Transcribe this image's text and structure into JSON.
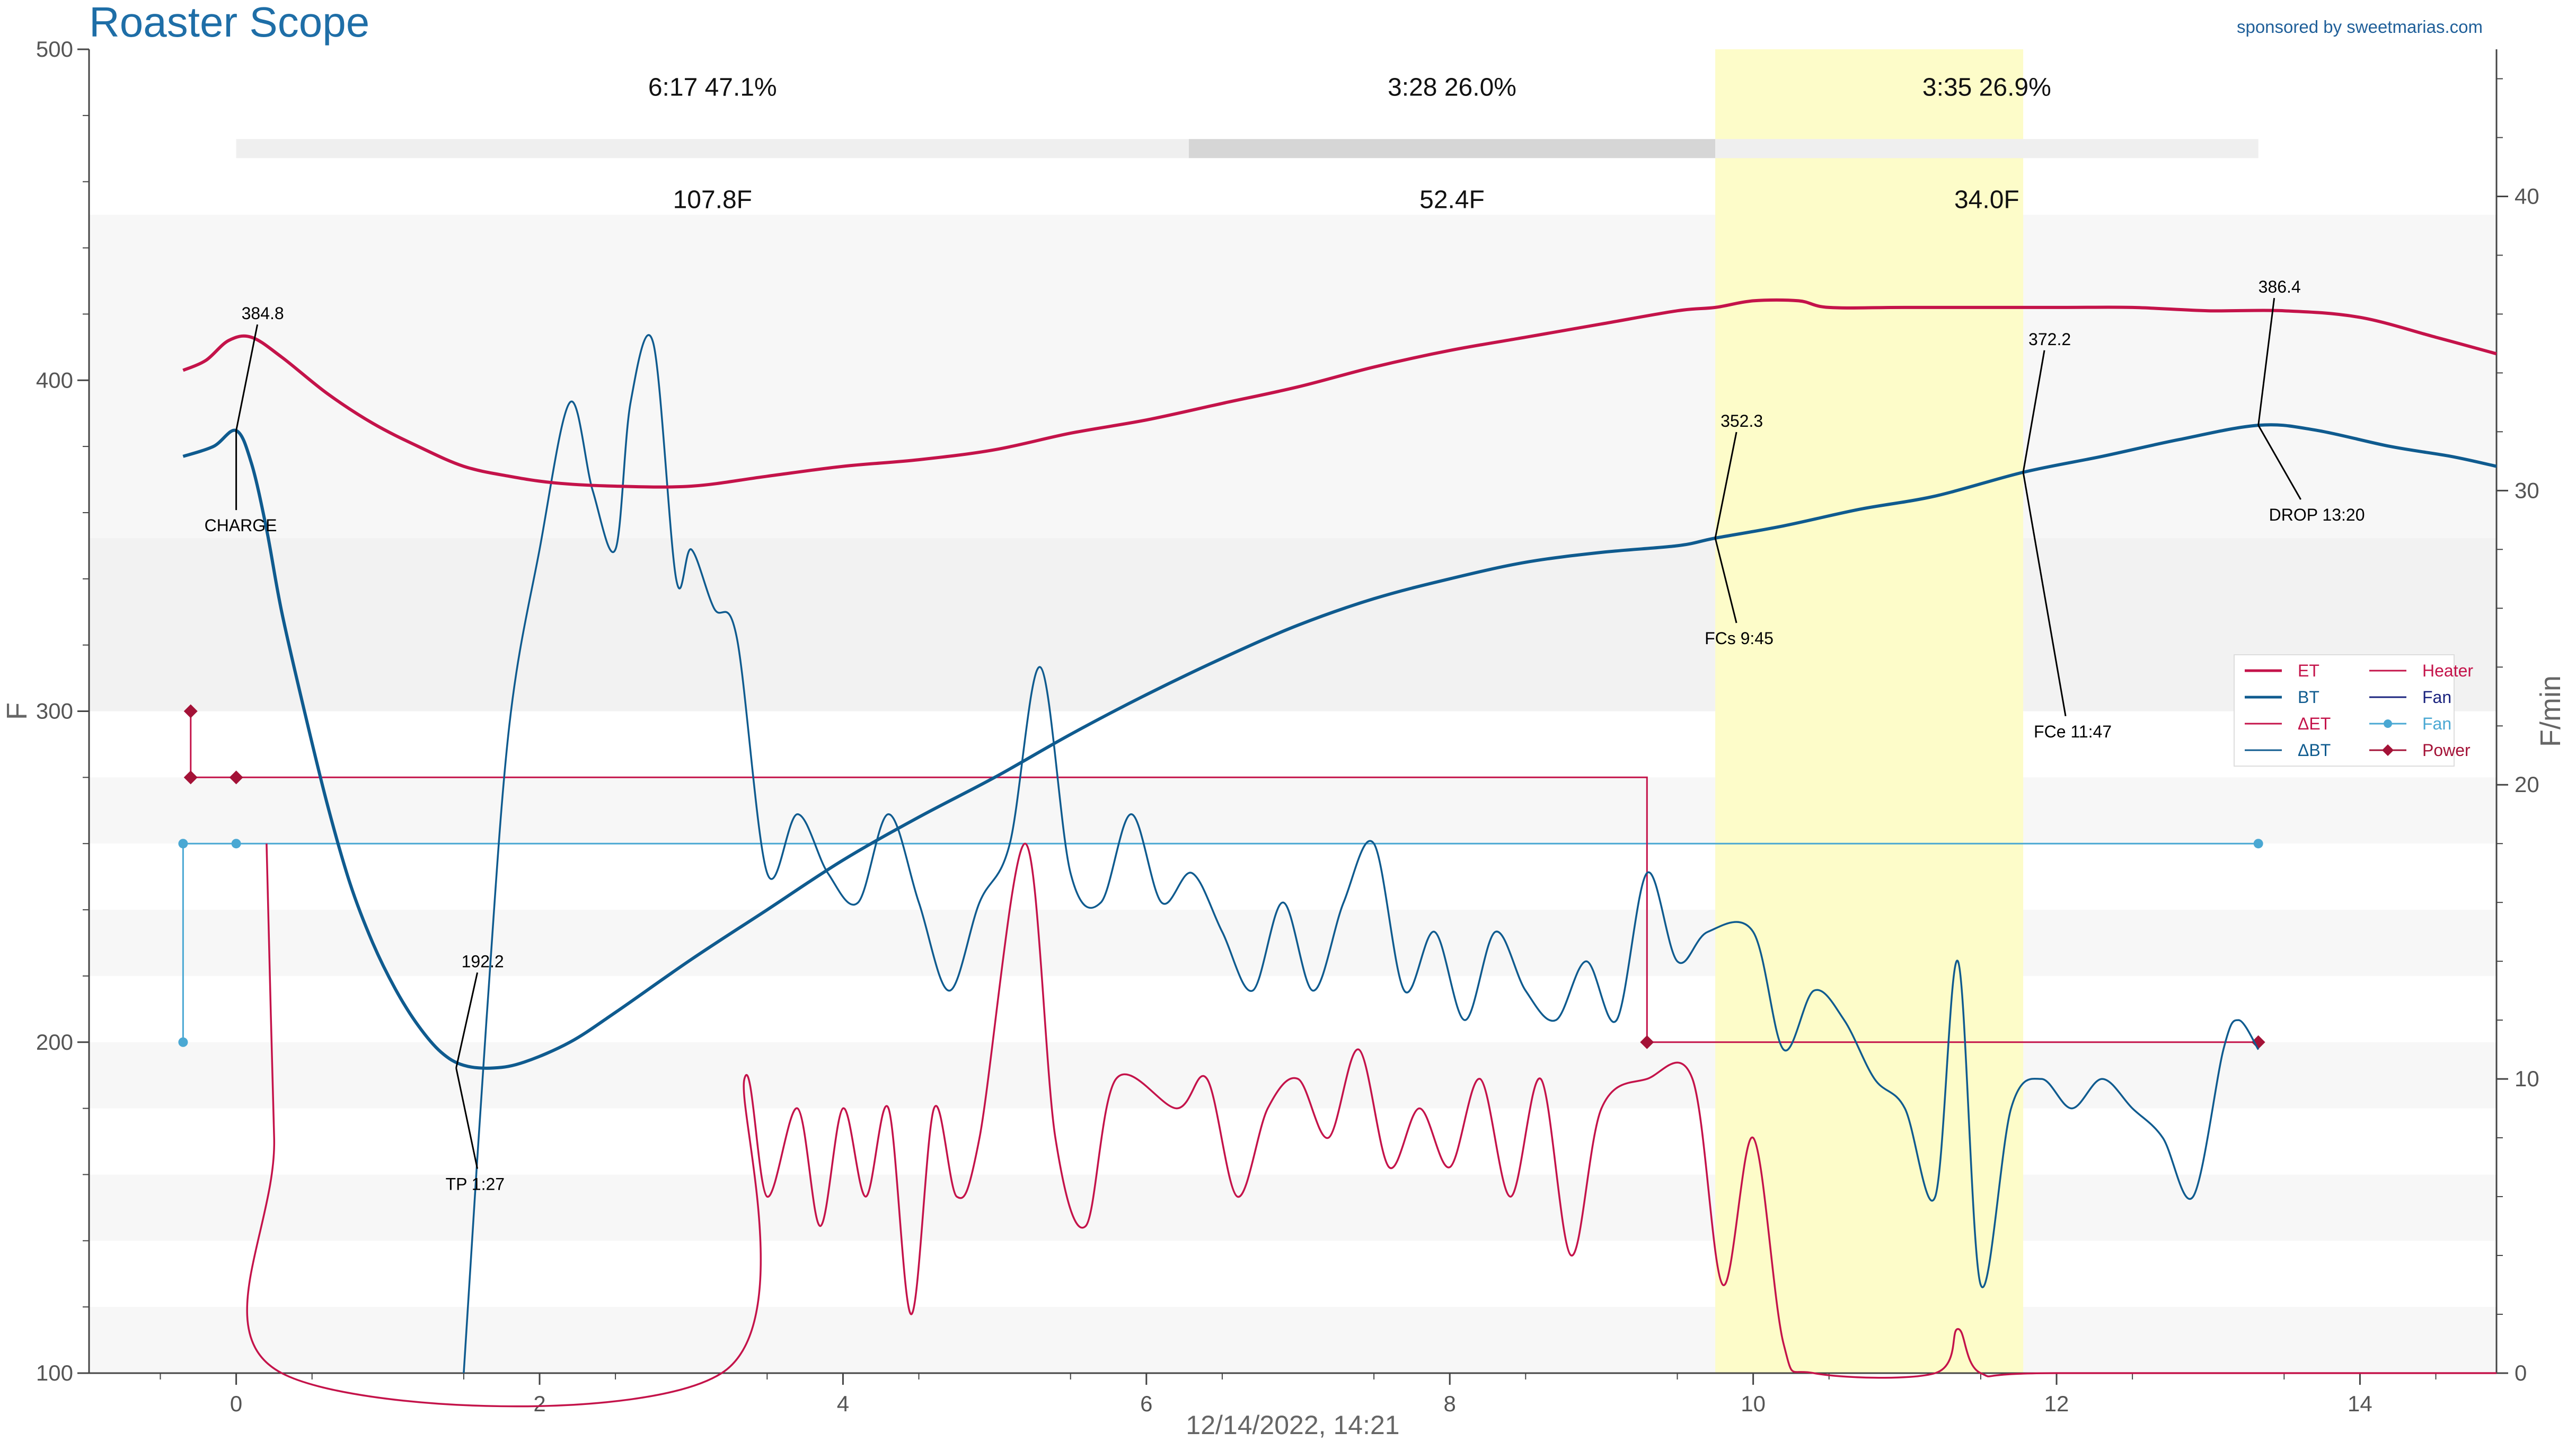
{
  "app": {
    "title": "Roaster Scope",
    "sponsor": "sponsored by sweetmarias.com"
  },
  "colors": {
    "et": "#c4134a",
    "bt": "#0f5b8f",
    "delta_et": "#c4134a",
    "delta_bt": "#0f5b8f",
    "heater": "#c4134a",
    "fan": "#4aa8d3",
    "power": "#a41237",
    "phase_highlight": "#fdfcc9",
    "band_light": "#f7f7f7",
    "band_mid": "#f2f2f2"
  },
  "chart_data": {
    "type": "line",
    "xlabel": "12/14/2022, 14:21",
    "ylabel": "F",
    "y2label": "F/min",
    "xlim": [
      -0.97,
      14.9
    ],
    "ylim": [
      100,
      500
    ],
    "y2lim": [
      0,
      45
    ],
    "x_ticks": [
      "0",
      "2",
      "4",
      "6",
      "8",
      "10",
      "12",
      "14"
    ],
    "y_ticks": [
      "100",
      "200",
      "300",
      "400",
      "500"
    ],
    "y2_ticks": [
      "0",
      "10",
      "20",
      "30",
      "40"
    ],
    "grid": false,
    "legend_position": "right",
    "legend": [
      {
        "label": "ET",
        "key": "et"
      },
      {
        "label": "BT",
        "key": "bt"
      },
      {
        "label": "ΔET",
        "key": "delta_et"
      },
      {
        "label": "ΔBT",
        "key": "delta_bt"
      },
      {
        "label": "Heater",
        "key": "heater"
      },
      {
        "label": "Fan",
        "key": "fan"
      },
      {
        "label": "Fan",
        "key": "fan_marker"
      },
      {
        "label": "Power",
        "key": "power"
      }
    ],
    "phases": [
      {
        "time": "6:17",
        "pct": "47.1%",
        "delta": "107.8F",
        "start": 0,
        "end": 6.28
      },
      {
        "time": "3:28",
        "pct": "26.0%",
        "delta": "52.4F",
        "start": 6.28,
        "end": 9.75
      },
      {
        "time": "3:35",
        "pct": "26.9%",
        "delta": "34.0F",
        "start": 9.75,
        "end": 13.33
      }
    ],
    "highlight_range": [
      9.75,
      11.78
    ],
    "events": [
      {
        "label": "CHARGE",
        "x": 0.0,
        "y": 384.8,
        "value": "384.8"
      },
      {
        "label": "TP 1:27",
        "x": 1.45,
        "y": 192.2,
        "value": "192.2"
      },
      {
        "label": "FCs 9:45",
        "x": 9.75,
        "y": 352.3,
        "value": "352.3"
      },
      {
        "label": "FCe 11:47",
        "x": 11.78,
        "y": 372.2,
        "value": "372.2"
      },
      {
        "label": "DROP 13:20",
        "x": 13.33,
        "y": 386.4,
        "value": "386.4"
      }
    ],
    "series": {
      "et": {
        "name": "ET",
        "axis": "left",
        "points": [
          [
            -0.35,
            403
          ],
          [
            -0.2,
            406
          ],
          [
            -0.05,
            412
          ],
          [
            0.1,
            413
          ],
          [
            0.3,
            407
          ],
          [
            0.6,
            396
          ],
          [
            0.9,
            387
          ],
          [
            1.2,
            380
          ],
          [
            1.5,
            374
          ],
          [
            1.8,
            371
          ],
          [
            2.1,
            369
          ],
          [
            2.5,
            368
          ],
          [
            3.0,
            368
          ],
          [
            3.5,
            371
          ],
          [
            4.0,
            374
          ],
          [
            4.5,
            376
          ],
          [
            5.0,
            379
          ],
          [
            5.5,
            384
          ],
          [
            6.0,
            388
          ],
          [
            6.5,
            393
          ],
          [
            7.0,
            398
          ],
          [
            7.5,
            404
          ],
          [
            8.0,
            409
          ],
          [
            8.5,
            413
          ],
          [
            9.0,
            417
          ],
          [
            9.5,
            421
          ],
          [
            9.75,
            422
          ],
          [
            10.0,
            424
          ],
          [
            10.3,
            424
          ],
          [
            10.5,
            422
          ],
          [
            11.0,
            422
          ],
          [
            12.0,
            422
          ],
          [
            12.5,
            422
          ],
          [
            13.0,
            421
          ],
          [
            13.5,
            421
          ],
          [
            14.0,
            419
          ],
          [
            14.5,
            413
          ],
          [
            14.9,
            408
          ]
        ]
      },
      "bt": {
        "name": "BT",
        "axis": "left",
        "points": [
          [
            -0.35,
            377
          ],
          [
            -0.15,
            380
          ],
          [
            0.0,
            384.8
          ],
          [
            0.1,
            375
          ],
          [
            0.2,
            355
          ],
          [
            0.3,
            330
          ],
          [
            0.45,
            300
          ],
          [
            0.6,
            272
          ],
          [
            0.75,
            248
          ],
          [
            0.9,
            230
          ],
          [
            1.05,
            216
          ],
          [
            1.2,
            205
          ],
          [
            1.35,
            197
          ],
          [
            1.5,
            193
          ],
          [
            1.7,
            192.2
          ],
          [
            1.9,
            194
          ],
          [
            2.2,
            200
          ],
          [
            2.5,
            209
          ],
          [
            3.0,
            225
          ],
          [
            3.5,
            240
          ],
          [
            4.0,
            255
          ],
          [
            4.5,
            268
          ],
          [
            5.0,
            280
          ],
          [
            5.5,
            293
          ],
          [
            6.0,
            305
          ],
          [
            6.5,
            316
          ],
          [
            7.0,
            326
          ],
          [
            7.5,
            334
          ],
          [
            8.0,
            340
          ],
          [
            8.5,
            345
          ],
          [
            9.0,
            348
          ],
          [
            9.5,
            350
          ],
          [
            9.75,
            352.3
          ],
          [
            10.2,
            356
          ],
          [
            10.7,
            361
          ],
          [
            11.2,
            365
          ],
          [
            11.78,
            372.2
          ],
          [
            12.3,
            377
          ],
          [
            12.8,
            382
          ],
          [
            13.33,
            386.4
          ],
          [
            13.7,
            385
          ],
          [
            14.2,
            380
          ],
          [
            14.6,
            377
          ],
          [
            14.9,
            374
          ]
        ]
      },
      "delta_et": {
        "name": "ΔET",
        "axis": "right",
        "points": [
          [
            0.2,
            18
          ],
          [
            0.25,
            8
          ],
          [
            0.3,
            0
          ],
          [
            3.2,
            0
          ],
          [
            3.35,
            10
          ],
          [
            3.5,
            6
          ],
          [
            3.7,
            9
          ],
          [
            3.85,
            5
          ],
          [
            4.0,
            9
          ],
          [
            4.15,
            6
          ],
          [
            4.3,
            9
          ],
          [
            4.45,
            2
          ],
          [
            4.6,
            9
          ],
          [
            4.75,
            6
          ],
          [
            4.9,
            8
          ],
          [
            5.2,
            18
          ],
          [
            5.4,
            8
          ],
          [
            5.6,
            5
          ],
          [
            5.8,
            10
          ],
          [
            6.2,
            9
          ],
          [
            6.4,
            10
          ],
          [
            6.6,
            6
          ],
          [
            6.8,
            9
          ],
          [
            7.0,
            10
          ],
          [
            7.2,
            8
          ],
          [
            7.4,
            11
          ],
          [
            7.6,
            7
          ],
          [
            7.8,
            9
          ],
          [
            8.0,
            7
          ],
          [
            8.2,
            10
          ],
          [
            8.4,
            6
          ],
          [
            8.6,
            10
          ],
          [
            8.8,
            4
          ],
          [
            9.0,
            9
          ],
          [
            9.3,
            10
          ],
          [
            9.6,
            10
          ],
          [
            9.8,
            3
          ],
          [
            10.0,
            8
          ],
          [
            10.2,
            1
          ],
          [
            10.4,
            0
          ],
          [
            11.2,
            0
          ],
          [
            11.35,
            1.5
          ],
          [
            11.5,
            0
          ],
          [
            12.0,
            0
          ],
          [
            14.9,
            0
          ]
        ]
      },
      "delta_bt": {
        "name": "ΔBT",
        "axis": "right",
        "points": [
          [
            1.5,
            0
          ],
          [
            1.65,
            12
          ],
          [
            1.8,
            22
          ],
          [
            2.0,
            28
          ],
          [
            2.2,
            33
          ],
          [
            2.35,
            30
          ],
          [
            2.5,
            28
          ],
          [
            2.6,
            33
          ],
          [
            2.75,
            35
          ],
          [
            2.9,
            27
          ],
          [
            3.0,
            28
          ],
          [
            3.15,
            26
          ],
          [
            3.3,
            25
          ],
          [
            3.5,
            17
          ],
          [
            3.7,
            19
          ],
          [
            3.9,
            17
          ],
          [
            4.1,
            16
          ],
          [
            4.3,
            19
          ],
          [
            4.5,
            16
          ],
          [
            4.7,
            13
          ],
          [
            4.9,
            16
          ],
          [
            5.1,
            18
          ],
          [
            5.3,
            24
          ],
          [
            5.5,
            17
          ],
          [
            5.7,
            16
          ],
          [
            5.9,
            19
          ],
          [
            6.1,
            16
          ],
          [
            6.3,
            17
          ],
          [
            6.5,
            15
          ],
          [
            6.7,
            13
          ],
          [
            6.9,
            16
          ],
          [
            7.1,
            13
          ],
          [
            7.3,
            16
          ],
          [
            7.5,
            18
          ],
          [
            7.7,
            13
          ],
          [
            7.9,
            15
          ],
          [
            8.1,
            12
          ],
          [
            8.3,
            15
          ],
          [
            8.5,
            13
          ],
          [
            8.7,
            12
          ],
          [
            8.9,
            14
          ],
          [
            9.1,
            12
          ],
          [
            9.3,
            17
          ],
          [
            9.5,
            14
          ],
          [
            9.7,
            15
          ],
          [
            10.0,
            15
          ],
          [
            10.2,
            11
          ],
          [
            10.4,
            13
          ],
          [
            10.6,
            12
          ],
          [
            10.8,
            10
          ],
          [
            11.0,
            9
          ],
          [
            11.2,
            6
          ],
          [
            11.35,
            14
          ],
          [
            11.5,
            3
          ],
          [
            11.7,
            9
          ],
          [
            11.9,
            10
          ],
          [
            12.1,
            9
          ],
          [
            12.3,
            10
          ],
          [
            12.5,
            9
          ],
          [
            12.7,
            8
          ],
          [
            12.9,
            6
          ],
          [
            13.1,
            11
          ],
          [
            13.2,
            12
          ],
          [
            13.33,
            11
          ]
        ]
      },
      "heater": {
        "name": "Heater",
        "axis": "left",
        "points": [
          [
            -0.3,
            300
          ],
          [
            -0.3,
            280
          ],
          [
            0.0,
            280
          ],
          [
            9.3,
            280
          ],
          [
            9.3,
            200
          ],
          [
            13.33,
            200
          ]
        ]
      },
      "fan": {
        "name": "Fan",
        "axis": "left",
        "points": [
          [
            -0.35,
            200
          ],
          [
            -0.35,
            260
          ],
          [
            0.0,
            260
          ],
          [
            13.33,
            260
          ]
        ]
      },
      "power": {
        "name": "Power",
        "axis": "left",
        "points": [
          [
            -0.3,
            300
          ],
          [
            -0.3,
            280
          ],
          [
            0.0,
            280
          ],
          [
            9.3,
            200
          ],
          [
            13.33,
            200
          ]
        ]
      }
    }
  }
}
